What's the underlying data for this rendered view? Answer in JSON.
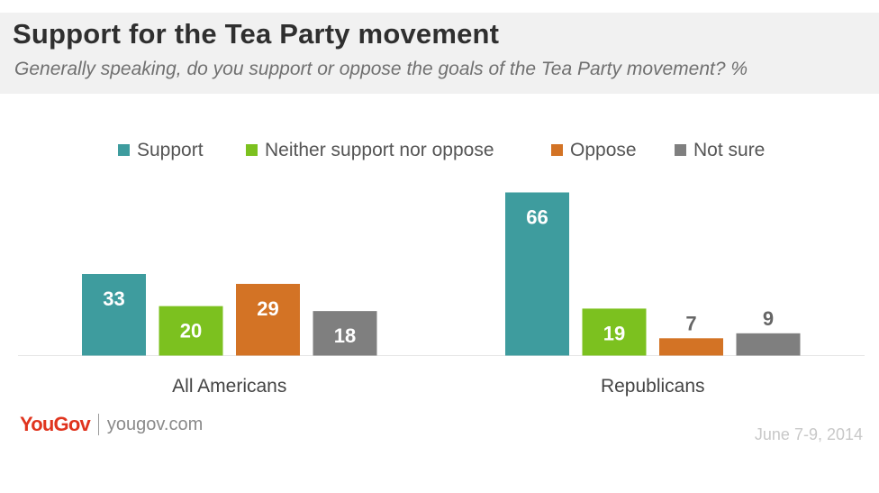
{
  "header": {
    "title": "Support for the Tea Party movement",
    "subtitle": "Generally speaking, do you support or oppose the goals of the Tea Party movement? %"
  },
  "chart_data": {
    "type": "bar",
    "title": "Support for the Tea Party movement",
    "subtitle": "Generally speaking, do you support or oppose the goals of the Tea Party movement? %",
    "categories": [
      "All Americans",
      "Republicans"
    ],
    "series": [
      {
        "name": "Support",
        "color": "#3e9c9e",
        "values": [
          33,
          66
        ]
      },
      {
        "name": "Neither support nor oppose",
        "color": "#7cc11f",
        "values": [
          20,
          19
        ]
      },
      {
        "name": "Oppose",
        "color": "#d37325",
        "values": [
          29,
          7
        ]
      },
      {
        "name": "Not sure",
        "color": "#7f7f7f",
        "values": [
          18,
          9
        ]
      }
    ],
    "ylim": [
      0,
      70
    ],
    "grid": false,
    "legend_position": "top"
  },
  "footer": {
    "logo": "YouGov",
    "url": "yougov.com",
    "date": "June 7-9, 2014"
  }
}
